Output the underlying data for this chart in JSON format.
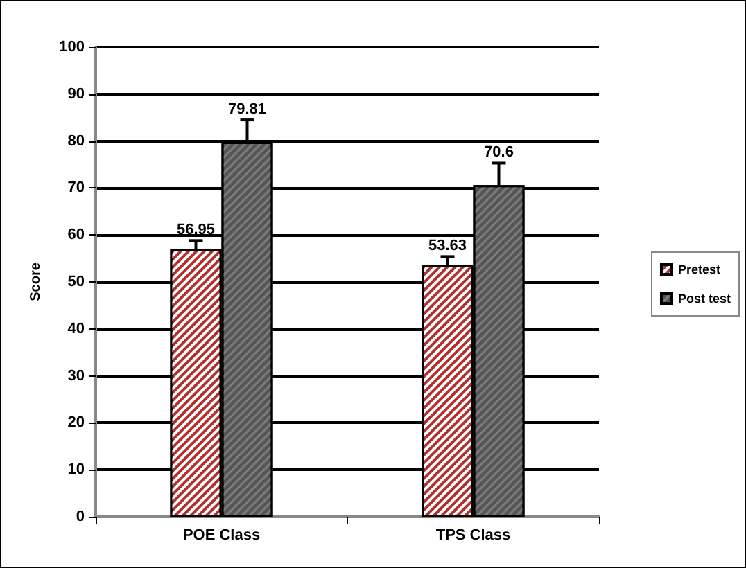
{
  "chart_data": {
    "type": "bar",
    "ylabel": "Score",
    "categories": [
      "POE Class",
      "TPS Class"
    ],
    "series": [
      {
        "name": "Pretest",
        "color": "#b03030",
        "values": [
          56.95,
          53.63
        ],
        "errors": [
          [
            56.95,
            58.8
          ],
          [
            53.63,
            55.4
          ]
        ]
      },
      {
        "name": "Post test",
        "color": "#555555",
        "values": [
          79.81,
          70.6
        ],
        "errors": [
          [
            79.81,
            84.5
          ],
          [
            70.6,
            75.3
          ]
        ]
      }
    ],
    "ylim": [
      0,
      100
    ],
    "yticks": [
      0,
      10,
      20,
      30,
      40,
      50,
      60,
      70,
      80,
      90,
      100
    ],
    "grid": "y",
    "legend": "right",
    "data_labels": true
  }
}
